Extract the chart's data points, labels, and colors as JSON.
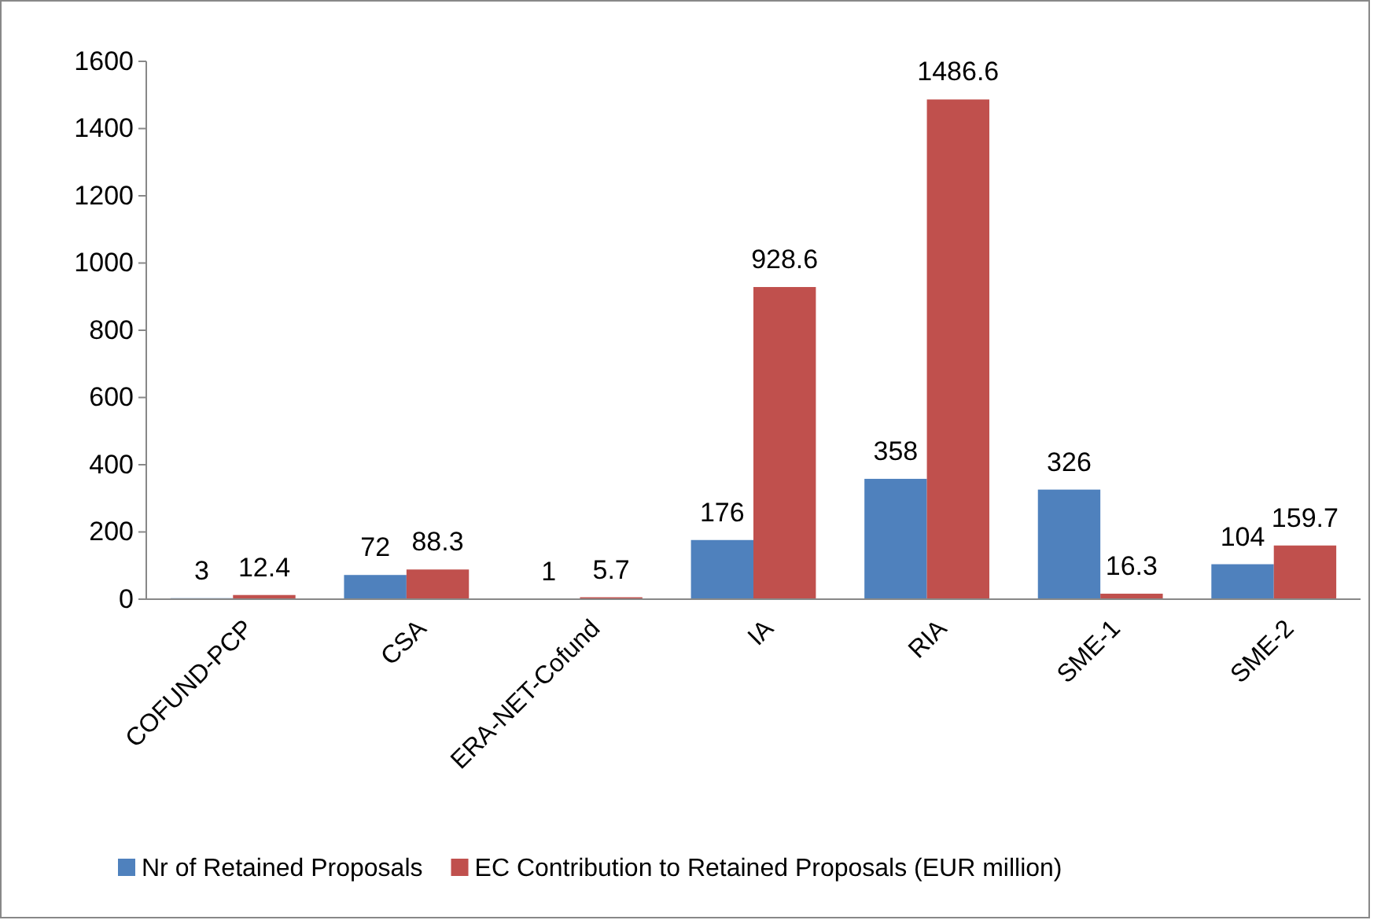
{
  "chart_data": {
    "type": "bar",
    "categories": [
      "COFUND-PCP",
      "CSA",
      "ERA-NET-Cofund",
      "IA",
      "RIA",
      "SME-1",
      "SME-2"
    ],
    "series": [
      {
        "name": "Nr of Retained Proposals",
        "color": "#4f81bd",
        "values": [
          3,
          72,
          1,
          176,
          358,
          326,
          104
        ]
      },
      {
        "name": "EC Contribution to Retained Proposals (EUR million)",
        "color": "#c0504d",
        "values": [
          12.4,
          88.3,
          5.7,
          928.6,
          1486.6,
          16.3,
          159.7
        ]
      }
    ],
    "ylim": [
      0,
      1600
    ],
    "yticks": [
      0,
      200,
      400,
      600,
      800,
      1000,
      1200,
      1400,
      1600
    ],
    "data_labels": true,
    "grid": false,
    "legend": "bottom"
  }
}
